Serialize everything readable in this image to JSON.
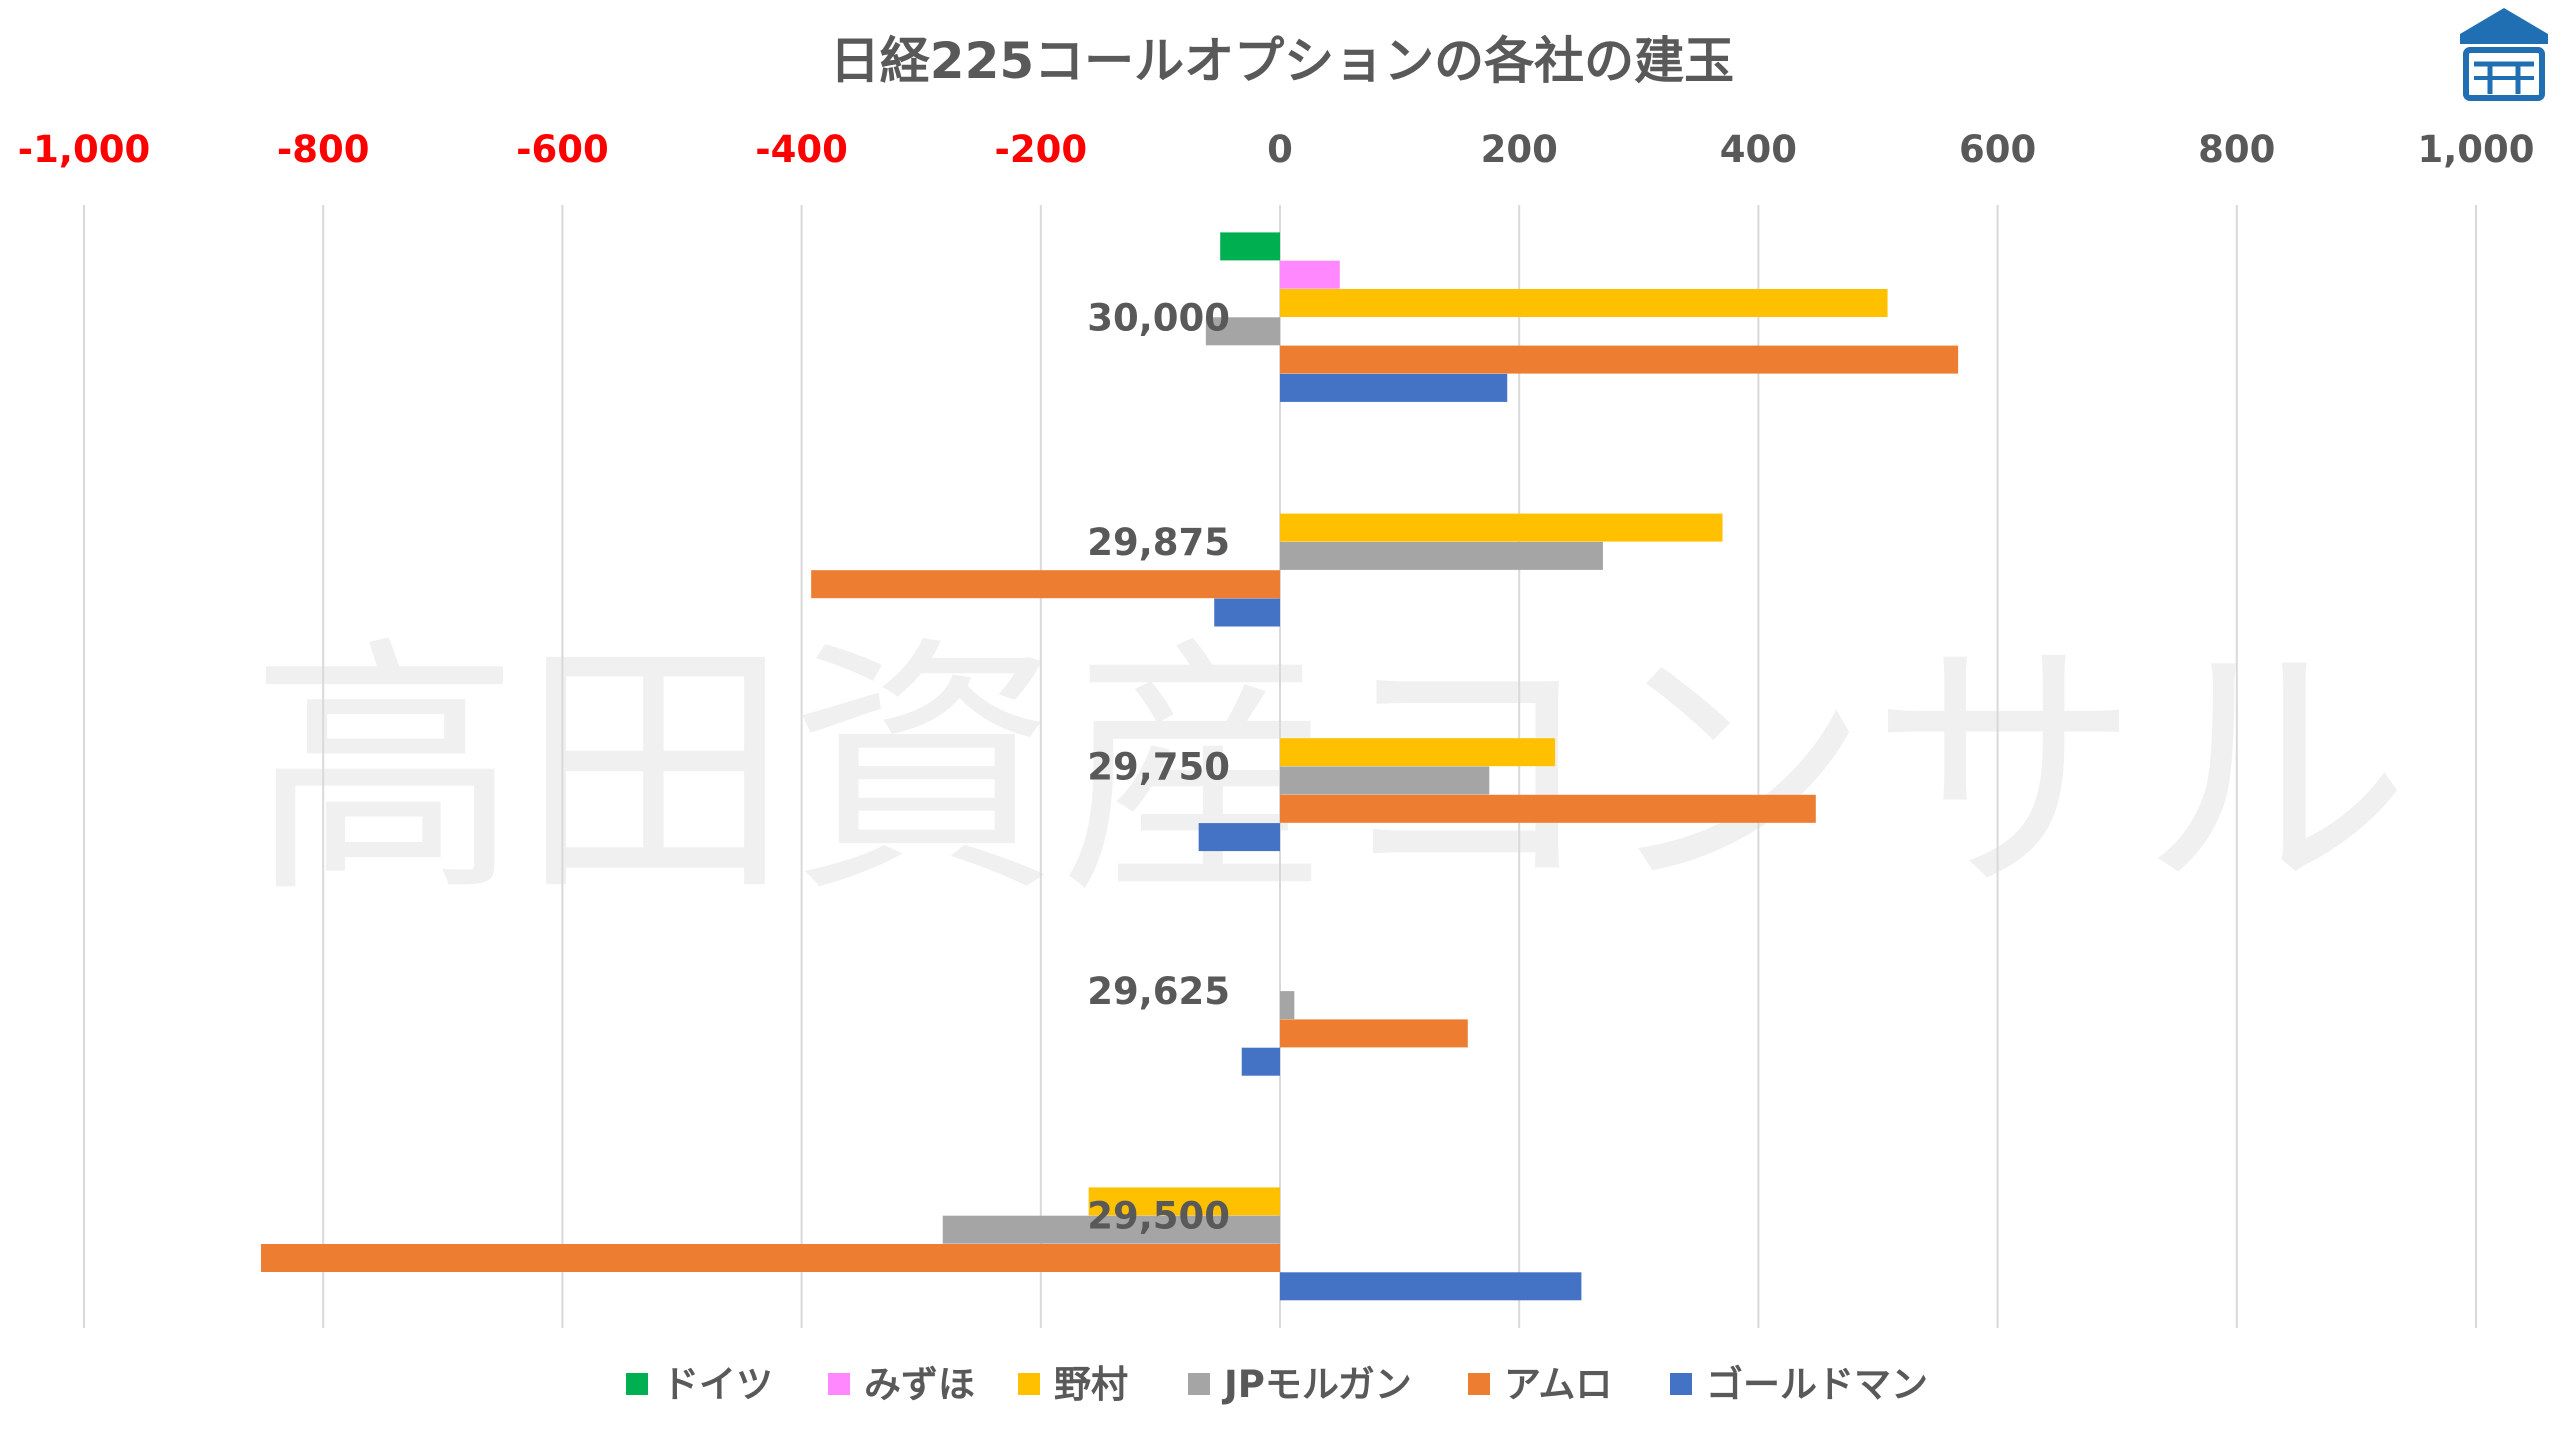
{
  "watermark": "高田資産コンサル",
  "colors": {
    "negative_tick": "#ff0000",
    "positive_tick": "#595959",
    "grid": "#d9d9d9",
    "logo": "#1f6fb2"
  },
  "chart_data": {
    "type": "bar",
    "orientation": "horizontal",
    "title": "日経225コールオプションの各社の建玉",
    "xlabel": "",
    "ylabel": "",
    "xlim": [
      -1000,
      1000
    ],
    "x_ticks": [
      -1000,
      -800,
      -600,
      -400,
      -200,
      0,
      200,
      400,
      600,
      800,
      1000
    ],
    "x_tick_labels": [
      "-1,000",
      "-800",
      "-600",
      "-400",
      "-200",
      "0",
      "200",
      "400",
      "600",
      "800",
      "1,000"
    ],
    "x_axis_position": "top",
    "grid": "vertical",
    "legend_position": "bottom",
    "categories": [
      "30,000",
      "29,875",
      "29,750",
      "29,625",
      "29,500"
    ],
    "series": [
      {
        "name": "ドイツ",
        "color": "#00b050",
        "values": [
          -50,
          0,
          0,
          0,
          0
        ]
      },
      {
        "name": "みずほ",
        "color": "#ff88ff",
        "values": [
          50,
          0,
          0,
          0,
          0
        ]
      },
      {
        "name": "野村",
        "color": "#ffc000",
        "values": [
          508,
          370,
          230,
          0,
          -160
        ]
      },
      {
        "name": "JPモルガン",
        "color": "#a5a5a5",
        "values": [
          -62,
          270,
          175,
          12,
          -282
        ]
      },
      {
        "name": "アムロ",
        "color": "#ed7d31",
        "values": [
          567,
          -392,
          448,
          157,
          -852
        ]
      },
      {
        "name": "ゴールドマン",
        "color": "#4472c4",
        "values": [
          190,
          -55,
          -68,
          -32,
          252
        ]
      }
    ]
  }
}
